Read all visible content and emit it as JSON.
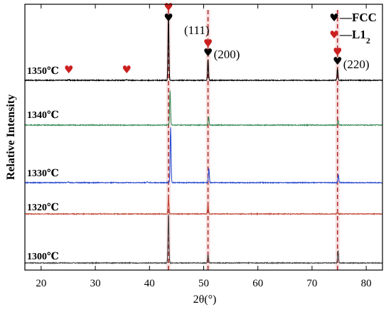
{
  "colors": {
    "marker_fcc": "#000000",
    "marker_l12": "#cc1f1f",
    "dashed_line": "#b03030",
    "highlight_band": "#f2c7c7"
  },
  "chart_data": {
    "type": "line",
    "title": "",
    "xlabel": "2θ(°)",
    "ylabel": "Relative Intensity",
    "xlim": [
      17,
      83
    ],
    "xticks": [
      20,
      30,
      40,
      50,
      60,
      70,
      80
    ],
    "xtick_labels": [
      "20",
      "30",
      "40",
      "50",
      "60",
      "70",
      "80"
    ],
    "y_ticks_shown": false,
    "legend": {
      "placement": "top-right",
      "entries": [
        {
          "marker": "heart",
          "color": "#000000",
          "label": "—FCC"
        },
        {
          "marker": "heart",
          "color": "#cc1f1f",
          "label": "—L1",
          "subscript": "2"
        }
      ]
    },
    "reference_lines": [
      {
        "x": 43.5,
        "style": "dashed"
      },
      {
        "x": 50.8,
        "style": "dashed"
      },
      {
        "x": 74.7,
        "style": "dashed"
      }
    ],
    "peak_labels": [
      {
        "text": "(111)",
        "x": 43.5
      },
      {
        "text": "(200)",
        "x": 50.8
      },
      {
        "text": "(220)",
        "x": 74.7
      }
    ],
    "phase_markers": [
      {
        "phase": "FCC",
        "x": 43.5
      },
      {
        "phase": "L1_2",
        "x": 43.5
      },
      {
        "phase": "FCC",
        "x": 50.8
      },
      {
        "phase": "L1_2",
        "x": 50.8
      },
      {
        "phase": "FCC",
        "x": 74.7
      },
      {
        "phase": "L1_2",
        "x": 74.7
      },
      {
        "phase": "L1_2",
        "x": 25.1
      },
      {
        "phase": "L1_2",
        "x": 35.8
      }
    ],
    "series": [
      {
        "name": "1350℃",
        "color": "#000000",
        "baseline": 0,
        "peaks": [
          [
            43.5,
            1.0
          ],
          [
            50.8,
            0.32
          ],
          [
            74.7,
            0.18
          ],
          [
            25.1,
            0.01
          ],
          [
            35.8,
            0.01
          ]
        ]
      },
      {
        "name": "1340℃",
        "color": "#3c8c5a",
        "baseline": 0,
        "peaks": [
          [
            43.8,
            0.78
          ],
          [
            50.9,
            0.2
          ],
          [
            74.8,
            0.11
          ]
        ]
      },
      {
        "name": "1330℃",
        "color": "#2f4fd0",
        "baseline": 0,
        "peaks": [
          [
            43.9,
            1.0
          ],
          [
            50.95,
            0.26
          ],
          [
            74.85,
            0.14
          ],
          [
            39.6,
            0.015
          ],
          [
            25.0,
            0.01
          ]
        ]
      },
      {
        "name": "1320℃",
        "color": "#c24c3c",
        "baseline": 0,
        "peaks": [
          [
            43.5,
            0.55
          ],
          [
            50.8,
            0.33
          ],
          [
            74.7,
            0.06
          ]
        ]
      },
      {
        "name": "1300℃",
        "color": "#444444",
        "baseline": 0,
        "peaks": [
          [
            43.5,
            1.0
          ],
          [
            50.8,
            0.18
          ],
          [
            74.8,
            0.26
          ]
        ]
      }
    ]
  }
}
